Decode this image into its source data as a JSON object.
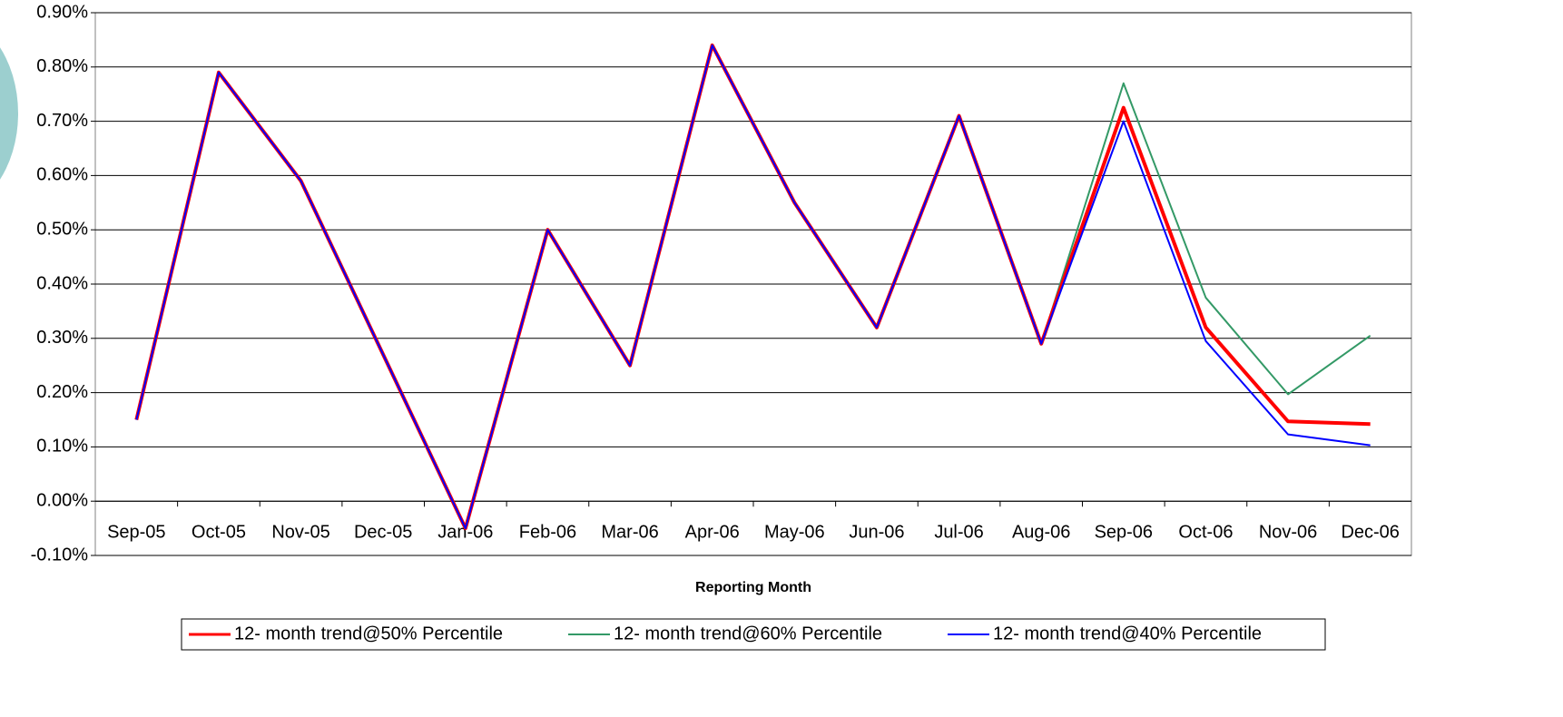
{
  "chart_data": {
    "type": "line",
    "x_label": "Reporting Month",
    "categories": [
      "Sep-05",
      "Oct-05",
      "Nov-05",
      "Dec-05",
      "Jan-06",
      "Feb-06",
      "Mar-06",
      "Apr-06",
      "May-06",
      "Jun-06",
      "Jul-06",
      "Aug-06",
      "Sep-06",
      "Oct-06",
      "Nov-06",
      "Dec-06"
    ],
    "series": [
      {
        "name": "12- month trend@50% Percentile",
        "color": "#ff0000",
        "values": [
          0.15,
          0.79,
          0.59,
          0.27,
          -0.05,
          0.5,
          0.25,
          0.84,
          0.55,
          0.32,
          0.71,
          0.29,
          0.725,
          0.32,
          0.147,
          0.142
        ]
      },
      {
        "name": "12- month trend@60% Percentile",
        "color": "#339966",
        "values": [
          0.15,
          0.79,
          0.59,
          0.27,
          -0.05,
          0.5,
          0.25,
          0.84,
          0.55,
          0.32,
          0.71,
          0.29,
          0.77,
          0.375,
          0.197,
          0.305
        ]
      },
      {
        "name": "12- month trend@40% Percentile",
        "color": "#0000ff",
        "values": [
          0.15,
          0.79,
          0.59,
          0.27,
          -0.05,
          0.5,
          0.25,
          0.84,
          0.55,
          0.32,
          0.71,
          0.29,
          0.7,
          0.295,
          0.123,
          0.103
        ]
      }
    ],
    "ylim": [
      -0.1,
      0.9
    ],
    "yticks": [
      {
        "value": -0.1,
        "label": "-0.10%"
      },
      {
        "value": 0,
        "label": "0.00%"
      },
      {
        "value": 0.1,
        "label": "0.10%"
      },
      {
        "value": 0.2,
        "label": "0.20%"
      },
      {
        "value": 0.3,
        "label": "0.30%"
      },
      {
        "value": 0.4,
        "label": "0.40%"
      },
      {
        "value": 0.5,
        "label": "0.50%"
      },
      {
        "value": 0.6,
        "label": "0.60%"
      },
      {
        "value": 0.7,
        "label": "0.70%"
      },
      {
        "value": 0.8,
        "label": "0.80%"
      },
      {
        "value": 0.9,
        "label": "0.90%"
      }
    ],
    "grid": true,
    "legend": "bottom"
  }
}
